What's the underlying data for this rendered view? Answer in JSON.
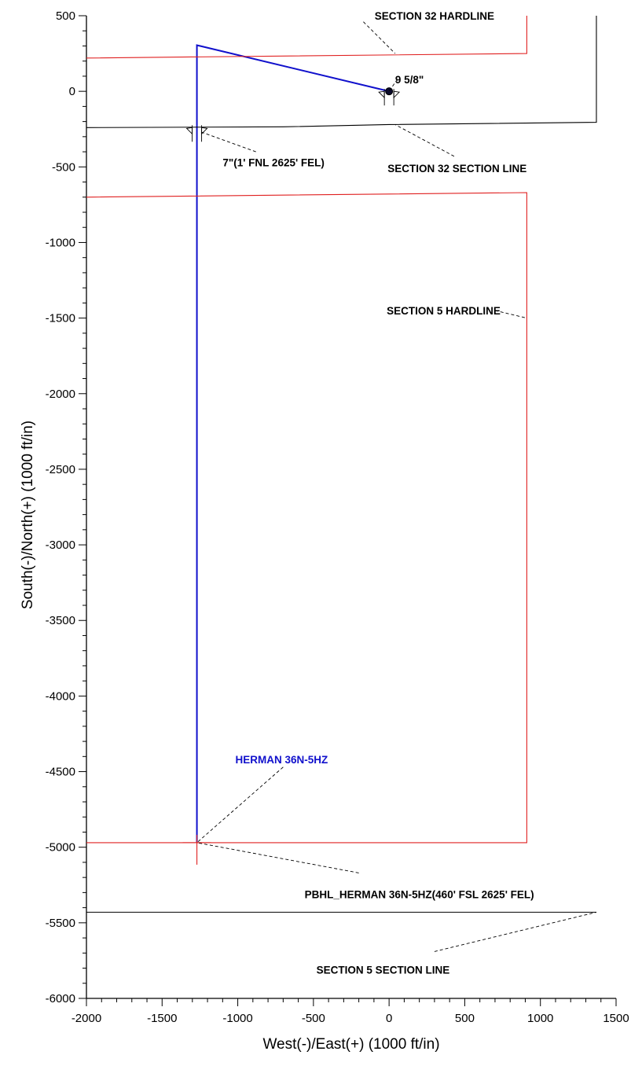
{
  "chart_data": {
    "type": "line",
    "title": "",
    "xlabel": "West(-)/East(+) (1000 ft/in)",
    "ylabel": "South(-)/North(+) (1000 ft/in)",
    "xlim": [
      -2000,
      1500
    ],
    "ylim": [
      -6000,
      500
    ],
    "xticks": [
      -2000,
      -1500,
      -1000,
      -500,
      0,
      500,
      1000,
      1500
    ],
    "yticks": [
      500,
      0,
      -500,
      -1000,
      -1500,
      -2000,
      -2500,
      -3000,
      -3500,
      -4000,
      -4500,
      -5000,
      -5500,
      -6000
    ],
    "grid": false,
    "colors": {
      "well": "#1010cc",
      "hardline": "#e02020",
      "section": "#000000",
      "axis": "#000000"
    },
    "series": [
      {
        "name": "HERMAN 36N-5HZ",
        "color": "#1010cc",
        "x": [
          0,
          -1270,
          -1270
        ],
        "y": [
          0,
          305,
          -4970
        ]
      },
      {
        "name": "SECTION 32 HARDLINE",
        "color": "#e02020",
        "x": [
          -2000,
          910,
          910
        ],
        "y": [
          220,
          250,
          500
        ]
      },
      {
        "name": "SECTION 5 HARDLINE",
        "color": "#e02020",
        "x": [
          -2000,
          910,
          910,
          -2000
        ],
        "y": [
          -700,
          -670,
          -4970,
          -4970
        ]
      },
      {
        "name": "SECTION 32 SECTION LINE",
        "color": "#000000",
        "x": [
          -2000,
          -700,
          -1,
          1370,
          1370
        ],
        "y": [
          -240,
          -235,
          -220,
          -205,
          500
        ]
      },
      {
        "name": "SECTION 5 SECTION LINE",
        "color": "#000000",
        "x": [
          -2000,
          1370
        ],
        "y": [
          -5430,
          -5430
        ]
      },
      {
        "name": "PBHL_HERMAN 36N-5HZ(460' FSL 2625' FEL)",
        "color": "#e02020",
        "x": [
          -1270
        ],
        "y": [
          -4970
        ]
      }
    ],
    "annotations": [
      {
        "text": "SECTION 32 HARDLINE",
        "x": 300,
        "y": 500,
        "anchor": "middle",
        "leader_to": [
          40,
          250
        ],
        "leader_from": [
          -170,
          460
        ]
      },
      {
        "text": "9 5/8\"",
        "x": 40,
        "y": 80,
        "anchor": "start",
        "leader_to": [
          0,
          0
        ],
        "leader_from": [
          55,
          80
        ]
      },
      {
        "text": "7\"(1' FNL 2625' FEL)",
        "x": -1100,
        "y": -470,
        "anchor": "start",
        "leader_to": [
          -1240,
          -270
        ],
        "leader_from": [
          -880,
          -400
        ]
      },
      {
        "text": "SECTION 32 SECTION LINE",
        "x": 450,
        "y": -510,
        "anchor": "middle",
        "leader_to": [
          40,
          -220
        ],
        "leader_from": [
          430,
          -430
        ]
      },
      {
        "text": "SECTION 5 HARDLINE",
        "x": 360,
        "y": -1450,
        "anchor": "middle",
        "leader_to": [
          910,
          -1500
        ],
        "leader_from": [
          700,
          -1450
        ]
      },
      {
        "text": "HERMAN 36N-5HZ",
        "x": -710,
        "y": -4420,
        "anchor": "middle",
        "leader_to": [
          -1270,
          -4970
        ],
        "leader_from": [
          -700,
          -4470
        ],
        "color": "#1010cc"
      },
      {
        "text": "PBHL_HERMAN 36N-5HZ(460' FSL 2625' FEL)",
        "x": 200,
        "y": -5310,
        "anchor": "middle",
        "leader_to": [
          -1270,
          -4970
        ],
        "leader_from": [
          -200,
          -5170
        ]
      },
      {
        "text": "SECTION 5 SECTION LINE",
        "x": -40,
        "y": -5810,
        "anchor": "middle",
        "leader_to": [
          1370,
          -5430
        ],
        "leader_from": [
          300,
          -5690
        ]
      }
    ],
    "casing_markers": [
      {
        "name": "9 5/8\" casing",
        "x": 0,
        "y": 0
      },
      {
        "name": "7\" casing",
        "x": -1270,
        "y": -240
      }
    ],
    "target": {
      "name": "PBHL",
      "x": -1270,
      "y": -4970
    }
  }
}
